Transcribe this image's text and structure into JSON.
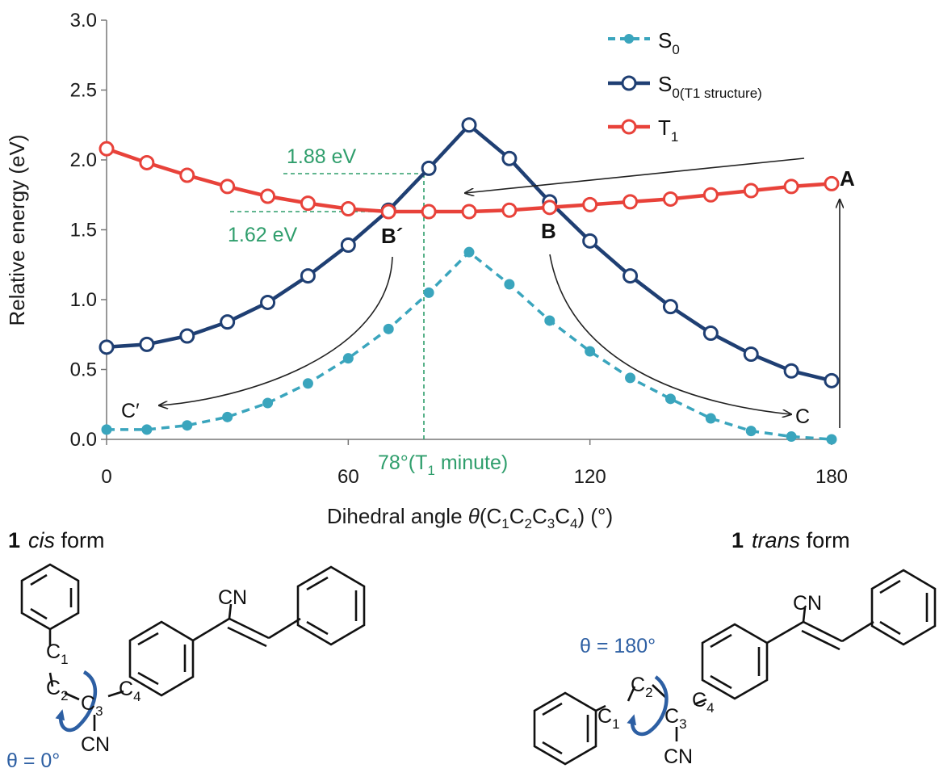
{
  "chart_data": {
    "type": "line",
    "xlabel": {
      "pre": "Dihedral angle ",
      "theta": "θ",
      "open": "(C",
      "s1": "1",
      "c2": "C",
      "s2": "2",
      "c3": "C",
      "s3": "3",
      "c4": "C",
      "s4": "4",
      "close": ") (°)"
    },
    "ylabel": "Relative energy (eV)",
    "xlim": [
      0,
      180
    ],
    "ylim": [
      0,
      3.0
    ],
    "xticks": [
      "0",
      "60",
      "120",
      "180"
    ],
    "yticks": [
      "0.0",
      "0.5",
      "1.0",
      "1.5",
      "2.0",
      "2.5",
      "3.0"
    ],
    "x": [
      0,
      10,
      20,
      30,
      40,
      50,
      60,
      70,
      80,
      90,
      100,
      110,
      120,
      130,
      140,
      150,
      160,
      170,
      180
    ],
    "series": [
      {
        "key": "s0",
        "name": "S",
        "sub": "0",
        "color": "#3aa5bd",
        "values": [
          0.07,
          0.07,
          0.1,
          0.16,
          0.26,
          0.4,
          0.58,
          0.79,
          1.05,
          1.34,
          1.11,
          0.85,
          0.63,
          0.44,
          0.29,
          0.15,
          0.06,
          0.02,
          0.0
        ]
      },
      {
        "key": "s0t1",
        "name": "S",
        "sub": "0(T1 structure)",
        "color": "#1f3f73",
        "values": [
          0.66,
          0.68,
          0.74,
          0.84,
          0.98,
          1.17,
          1.39,
          1.64,
          1.94,
          2.25,
          2.01,
          1.7,
          1.42,
          1.17,
          0.95,
          0.76,
          0.61,
          0.49,
          0.42
        ]
      },
      {
        "key": "t1",
        "name": "T",
        "sub": "1",
        "color": "#e8423a",
        "values": [
          2.08,
          1.98,
          1.89,
          1.81,
          1.74,
          1.69,
          1.65,
          1.63,
          1.63,
          1.63,
          1.64,
          1.66,
          1.68,
          1.7,
          1.72,
          1.75,
          1.78,
          1.81,
          1.83
        ]
      }
    ],
    "annotations": {
      "e_high": "1.88 eV",
      "e_low": "1.62 eV",
      "min_pre": "78°(T",
      "min_sub": "1",
      "min_post": " minute)",
      "A": "A",
      "B": "B",
      "B_prime": "B´",
      "C": "C",
      "C_prime": "C′"
    },
    "legend_position": "top-right"
  },
  "structures": {
    "cis": {
      "num": "1",
      "form": "cis",
      "suffix": " form",
      "cn_top": "CN",
      "cn_bottom": "CN",
      "c1": "C",
      "c1s": "1",
      "c2": "C",
      "c2s": "2",
      "c3": "C",
      "c3s": "3",
      "c4": "C",
      "c4s": "4",
      "theta_label": "θ = 0°"
    },
    "trans": {
      "num": "1",
      "form": "trans",
      "suffix": " form",
      "cn_top": "CN",
      "cn_bottom": "CN",
      "c1": "C",
      "c1s": "1",
      "c2": "C",
      "c2s": "2",
      "c3": "C",
      "c3s": "3",
      "c4": "C",
      "c4s": "4",
      "theta_label": "θ = 180°"
    }
  }
}
